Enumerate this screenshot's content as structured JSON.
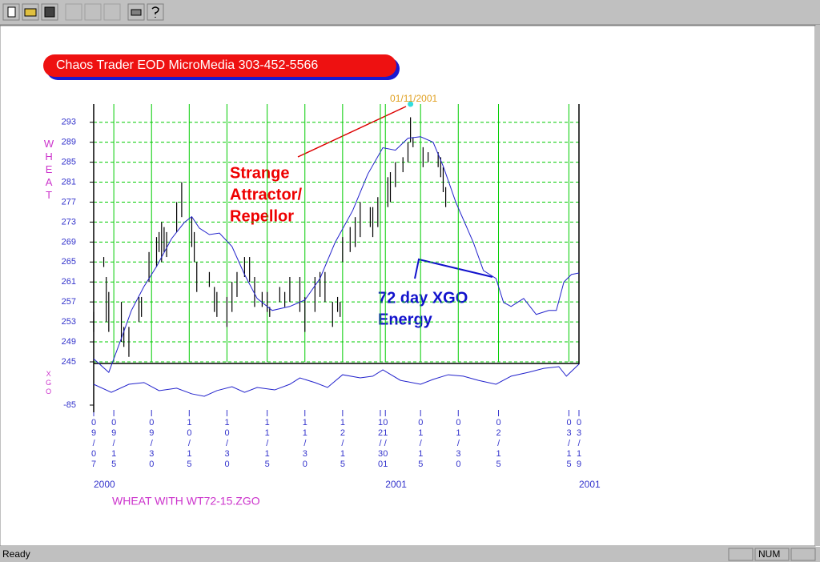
{
  "banner": "Chaos Trader EOD MicroMedia 303-452-5566",
  "annotations": {
    "attractor": [
      "Strange",
      "Attractor/",
      "Repellor"
    ],
    "energy": [
      "72 day XGO",
      "Energy"
    ],
    "peak": {
      "x": "2001-01-11",
      "label": "01/11/2001"
    }
  },
  "footer_title": "WHEAT WITH WT72-15.ZGO",
  "status_bar": {
    "text": "Ready",
    "indicator": "NUM"
  },
  "chart_data": [
    {
      "type": "hilo",
      "y_label": "WHEAT",
      "color": "#000000",
      "grid": true,
      "grid_color": "#00cc00",
      "ylim": [
        245,
        296
      ],
      "yticks": [
        245,
        249,
        253,
        257,
        261,
        265,
        269,
        273,
        277,
        281,
        285,
        289,
        293
      ],
      "xlim": [
        "2000-09-07",
        "2001-03-19"
      ],
      "xticks": [
        {
          "value": "2000-09-07",
          "label": "09/07"
        },
        {
          "value": "2000-09-15",
          "label": "09/15"
        },
        {
          "value": "2000-09-30",
          "label": "09/30"
        },
        {
          "value": "2000-10-15",
          "label": "10/15"
        },
        {
          "value": "2000-10-30",
          "label": "10/30"
        },
        {
          "value": "2000-11-15",
          "label": "11/15"
        },
        {
          "value": "2000-11-30",
          "label": "11/30"
        },
        {
          "value": "2000-12-15",
          "label": "12/15"
        },
        {
          "value": "2000-12-30",
          "label": "12/30"
        },
        {
          "value": "2001-01-01",
          "label": "01/01"
        },
        {
          "value": "2001-01-15",
          "label": "01/15"
        },
        {
          "value": "2001-01-30",
          "label": "01/30"
        },
        {
          "value": "2001-02-15",
          "label": "02/15"
        },
        {
          "value": "2001-03-15",
          "label": "03/15"
        },
        {
          "value": "2001-03-19",
          "label": "03/19"
        }
      ],
      "year_labels": [
        {
          "x": "2000-09-07",
          "label": "2000"
        },
        {
          "x": "2001-01-01",
          "label": "2001"
        },
        {
          "x": "2001-03-19",
          "label": "2001"
        }
      ],
      "x": [
        "2000-09-07",
        "2000-09-11",
        "2000-09-12",
        "2000-09-13",
        "2000-09-18",
        "2000-09-19",
        "2000-09-21",
        "2000-09-25",
        "2000-09-26",
        "2000-09-29",
        "2000-10-02",
        "2000-10-03",
        "2000-10-04",
        "2000-10-05",
        "2000-10-06",
        "2000-10-10",
        "2000-10-12",
        "2000-10-16",
        "2000-10-17",
        "2000-10-18",
        "2000-10-23",
        "2000-10-25",
        "2000-10-26",
        "2000-10-30",
        "2000-11-01",
        "2000-11-03",
        "2000-11-06",
        "2000-11-08",
        "2000-11-10",
        "2000-11-13",
        "2000-11-15",
        "2000-11-16",
        "2000-11-20",
        "2000-11-22",
        "2000-11-24",
        "2000-11-28",
        "2000-11-30",
        "2000-12-04",
        "2000-12-06",
        "2000-12-08",
        "2000-12-11",
        "2000-12-13",
        "2000-12-14",
        "2000-12-15",
        "2000-12-18",
        "2000-12-20",
        "2000-12-22",
        "2000-12-26",
        "2000-12-27",
        "2000-12-29",
        "2001-01-02",
        "2001-01-03",
        "2001-01-05",
        "2001-01-08",
        "2001-01-10",
        "2001-01-11",
        "2001-01-12",
        "2001-01-16",
        "2001-01-18",
        "2001-01-22",
        "2001-01-23",
        "2001-01-24",
        "2001-01-25"
      ],
      "high": [
        255,
        266,
        262,
        259,
        257,
        252,
        252,
        258,
        258,
        267,
        270,
        271,
        273,
        272,
        271,
        277,
        281,
        274,
        271,
        265,
        263,
        260,
        259,
        258,
        261,
        263,
        266,
        266,
        262,
        259,
        259,
        256,
        260,
        259,
        262,
        262,
        258,
        262,
        263,
        263,
        257,
        258,
        257,
        270,
        272,
        274,
        277,
        276,
        276,
        278,
        282,
        283,
        285,
        286,
        289,
        294,
        290,
        288,
        287,
        287,
        286,
        284,
        280
      ],
      "low": [
        251,
        264,
        253,
        251,
        249,
        248,
        246,
        253,
        254,
        261,
        264,
        267,
        265,
        267,
        266,
        271,
        274,
        268,
        265,
        259,
        260,
        255,
        254,
        252,
        255,
        258,
        262,
        261,
        256,
        256,
        255,
        254,
        257,
        256,
        257,
        255,
        251,
        255,
        258,
        257,
        252,
        255,
        254,
        265,
        267,
        268,
        270,
        272,
        270,
        272,
        276,
        277,
        280,
        283,
        285,
        289,
        288,
        284,
        285,
        284,
        282,
        279,
        276
      ],
      "ma": {
        "color": "#2222cc",
        "x": [
          "2000-09-07",
          "2000-09-13",
          "2000-09-18",
          "2000-09-22",
          "2000-09-27",
          "2000-10-02",
          "2000-10-08",
          "2000-10-13",
          "2000-10-16",
          "2000-10-19",
          "2000-10-23",
          "2000-10-27",
          "2000-11-01",
          "2000-11-06",
          "2000-11-11",
          "2000-11-17",
          "2000-11-24",
          "2000-11-30",
          "2000-12-06",
          "2000-12-12",
          "2000-12-19",
          "2000-12-25",
          "2000-12-31",
          "2001-01-05",
          "2001-01-10",
          "2001-01-15",
          "2001-01-20",
          "2001-01-24",
          "2001-01-29",
          "2001-02-05",
          "2001-02-09",
          "2001-02-14",
          "2001-02-17",
          "2001-02-20",
          "2001-02-25",
          "2001-03-02",
          "2001-03-07",
          "2001-03-10",
          "2001-03-13",
          "2001-03-16",
          "2001-03-19"
        ],
        "values": [
          245.6,
          242.9,
          249.7,
          255.3,
          260.1,
          264.1,
          269.7,
          272.9,
          274.1,
          271.8,
          270.5,
          270.8,
          268.1,
          262.5,
          257.7,
          255.3,
          256.1,
          257.4,
          261.7,
          268.9,
          275.3,
          282.6,
          287.9,
          287.4,
          289.8,
          290.1,
          289.0,
          284.2,
          277.0,
          268.9,
          263.3,
          261.7,
          256.9,
          256.1,
          257.7,
          254.5,
          255.3,
          255.3,
          261.0,
          262.5,
          262.8
        ]
      }
    },
    {
      "type": "line",
      "y_label": "XGO",
      "color": "#2222cc",
      "ylim": [
        -85,
        85
      ],
      "yticks": [
        -85
      ],
      "xlim": [
        "2000-09-07",
        "2001-03-19"
      ],
      "x": [
        "2000-09-07",
        "2000-09-14",
        "2000-09-21",
        "2000-09-27",
        "2000-10-03",
        "2000-10-10",
        "2000-10-16",
        "2000-10-21",
        "2000-10-26",
        "2000-11-01",
        "2000-11-06",
        "2000-11-11",
        "2000-11-18",
        "2000-11-24",
        "2000-11-28",
        "2000-12-04",
        "2000-12-09",
        "2000-12-15",
        "2000-12-22",
        "2000-12-27",
        "2000-12-31",
        "2001-01-07",
        "2001-01-15",
        "2001-01-20",
        "2001-01-26",
        "2001-02-01",
        "2001-02-07",
        "2001-02-14",
        "2001-02-20",
        "2001-02-27",
        "2001-03-05",
        "2001-03-11",
        "2001-03-14",
        "2001-03-19"
      ],
      "values": [
        0,
        -33,
        0,
        7,
        -26,
        -16,
        -39,
        -49,
        -26,
        -10,
        -33,
        -13,
        -23,
        0,
        26,
        7,
        -13,
        39,
        26,
        33,
        59,
        16,
        0,
        20,
        39,
        33,
        16,
        0,
        33,
        49,
        65,
        72,
        33,
        82
      ]
    }
  ]
}
